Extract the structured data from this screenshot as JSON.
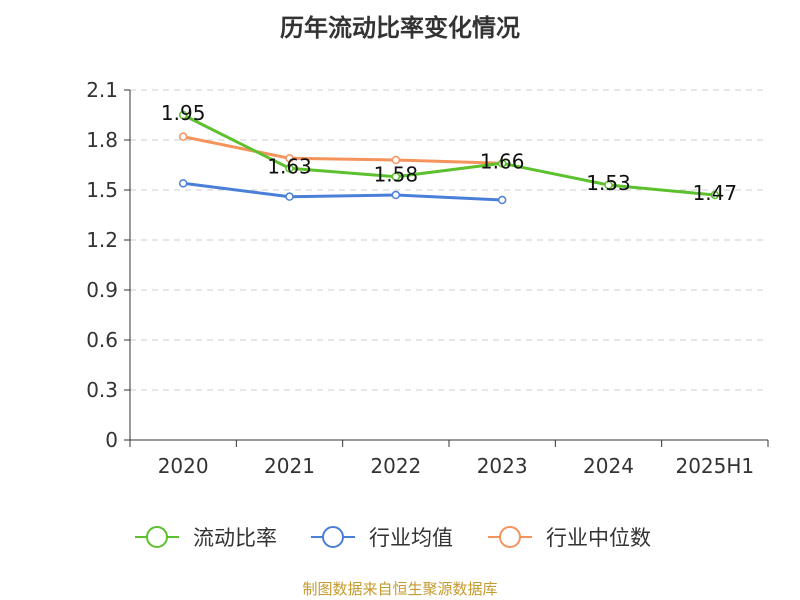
{
  "chart_data": {
    "type": "line",
    "title": "历年流动比率变化情况",
    "categories": [
      "2020",
      "2021",
      "2022",
      "2023",
      "2024",
      "2025H1"
    ],
    "ylim": [
      0,
      2.1
    ],
    "yticks": [
      "0",
      "0.3",
      "0.6",
      "0.9",
      "1.2",
      "1.5",
      "1.8",
      "2.1"
    ],
    "grid": true,
    "legend_position": "bottom",
    "series": [
      {
        "name": "流动比率",
        "color": "#5cc12d",
        "values": [
          1.95,
          1.63,
          1.58,
          1.66,
          1.53,
          1.47
        ],
        "labels": [
          "1.95",
          "1.63",
          "1.58",
          "1.66",
          "1.53",
          "1.47"
        ]
      },
      {
        "name": "行业均值",
        "color": "#4a7fd9",
        "values": [
          1.54,
          1.46,
          1.47,
          1.44,
          null,
          null
        ]
      },
      {
        "name": "行业中位数",
        "color": "#f4935c",
        "values": [
          1.82,
          1.69,
          1.68,
          1.66,
          null,
          null
        ]
      }
    ]
  },
  "source": "制图数据来自恒生聚源数据库"
}
